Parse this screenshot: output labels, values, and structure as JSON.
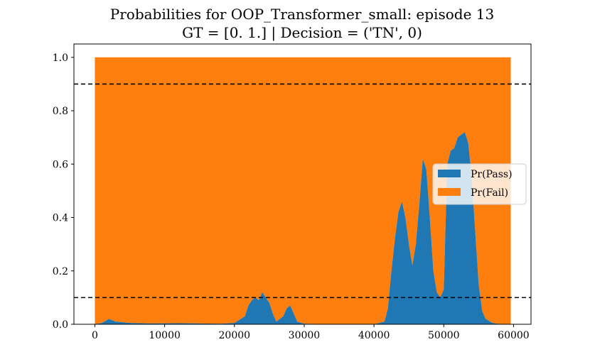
{
  "chart_data": {
    "type": "area",
    "title_line1": "Probabilities for OOP_Transformer_small: episode 13",
    "title_line2": "GT = [0. 1.] | Decision = ('TN', 0)",
    "xlim": [
      -3000,
      62500
    ],
    "ylim": [
      0.0,
      1.05
    ],
    "x_ticks": [
      0,
      10000,
      20000,
      30000,
      40000,
      50000,
      60000
    ],
    "y_ticks": [
      0.0,
      0.2,
      0.4,
      0.6,
      0.8,
      1.0
    ],
    "x_tick_labels": [
      "0",
      "10000",
      "20000",
      "30000",
      "40000",
      "50000",
      "60000"
    ],
    "y_tick_labels": [
      "0.0",
      "0.2",
      "0.4",
      "0.6",
      "0.8",
      "1.0"
    ],
    "thresholds": [
      0.1,
      0.9
    ],
    "legend_position": "center-right",
    "series": [
      {
        "name": "Pr(Pass)",
        "color": "#1f77b4",
        "x": [
          0,
          1000,
          2000,
          3000,
          5000,
          8000,
          12000,
          18000,
          20000,
          21500,
          22000,
          22500,
          23000,
          23500,
          24000,
          24500,
          25000,
          25500,
          26000,
          27000,
          27500,
          28000,
          28500,
          29000,
          30000,
          35000,
          40000,
          41500,
          42000,
          42500,
          43000,
          43500,
          44000,
          44500,
          45000,
          45500,
          46000,
          46500,
          47000,
          47500,
          48000,
          48500,
          49000,
          49500,
          50000,
          50500,
          51000,
          51500,
          52000,
          52500,
          53000,
          53500,
          54000,
          54500,
          55000,
          55500,
          56000,
          57000,
          58000,
          59600
        ],
        "values": [
          0.0,
          0.005,
          0.02,
          0.01,
          0.005,
          0.003,
          0.004,
          0.002,
          0.005,
          0.03,
          0.07,
          0.09,
          0.1,
          0.09,
          0.12,
          0.1,
          0.08,
          0.04,
          0.01,
          0.03,
          0.06,
          0.07,
          0.04,
          0.01,
          0.002,
          0.0,
          0.0,
          0.01,
          0.06,
          0.2,
          0.32,
          0.42,
          0.46,
          0.4,
          0.3,
          0.22,
          0.3,
          0.45,
          0.62,
          0.58,
          0.4,
          0.2,
          0.12,
          0.1,
          0.13,
          0.6,
          0.65,
          0.66,
          0.7,
          0.71,
          0.72,
          0.68,
          0.55,
          0.35,
          0.15,
          0.05,
          0.02,
          0.005,
          0.001,
          0.0
        ]
      },
      {
        "name": "Pr(Fail)",
        "color": "#ff7f0e"
      }
    ]
  },
  "colors": {
    "threshold_line": "#000000",
    "axis": "#000000",
    "background": "#ffffff"
  }
}
